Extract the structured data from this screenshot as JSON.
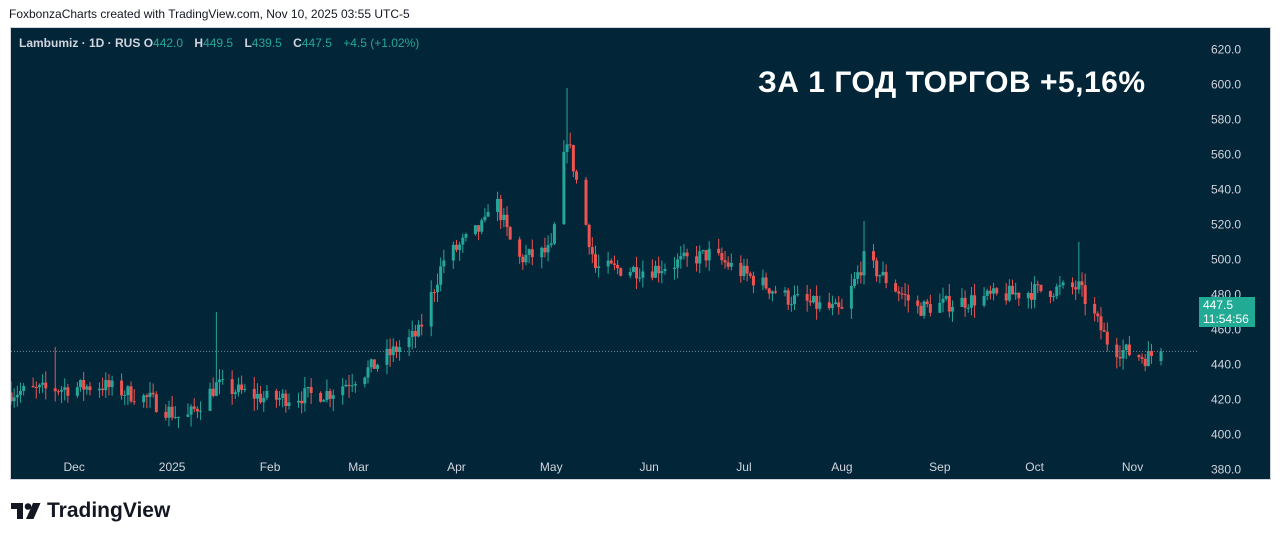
{
  "attribution": "FoxbonzaCharts created with TradingView.com, Nov 10, 2025 03:55 UTC-5",
  "brand": "TradingView",
  "headline": "ЗА 1 ГОД ТОРГОВ +5,16%",
  "legend": {
    "symbol": "Lambumiz · 1D · RUS",
    "o_label": "O",
    "o_value": "442.0",
    "h_label": "H",
    "h_value": "449.5",
    "l_label": "L",
    "l_value": "439.5",
    "c_label": "C",
    "c_value": "447.5",
    "change": "+4.5 (+1.02%)"
  },
  "price_tag": {
    "price": "447.5",
    "countdown": "11:54:56"
  },
  "colors": {
    "background": "#022538",
    "up": "#26a69a",
    "down": "#ef5350",
    "tag": "#22ab94"
  },
  "chart_data": {
    "type": "candlestick",
    "y_ticks": [
      "380.0",
      "400.0",
      "420.0",
      "440.0",
      "460.0",
      "480.0",
      "500.0",
      "520.0",
      "540.0",
      "560.0",
      "580.0",
      "600.0",
      "620.0"
    ],
    "ylim": [
      380,
      620
    ],
    "x_ticks": [
      "Dec",
      "2025",
      "Feb",
      "Mar",
      "Apr",
      "May",
      "Jun",
      "Jul",
      "Aug",
      "Sep",
      "Oct",
      "Nov"
    ],
    "x_range": [
      "2024-11-11",
      "2025-11-10"
    ],
    "tick_dates": [
      "2024-12-01",
      "2025-01-01",
      "2025-02-01",
      "2025-03-01",
      "2025-04-01",
      "2025-05-01",
      "2025-06-01",
      "2025-07-01",
      "2025-08-01",
      "2025-09-01",
      "2025-10-01",
      "2025-11-01"
    ],
    "last_price": 447.5,
    "anchors": [
      {
        "date": "2024-11-11",
        "close": 424
      },
      {
        "date": "2024-11-25",
        "close": 426
      },
      {
        "date": "2024-12-10",
        "close": 428
      },
      {
        "date": "2024-12-25",
        "close": 420
      },
      {
        "date": "2025-01-05",
        "close": 408
      },
      {
        "date": "2025-01-15",
        "close": 428
      },
      {
        "date": "2025-02-01",
        "close": 420
      },
      {
        "date": "2025-02-20",
        "close": 424
      },
      {
        "date": "2025-03-05",
        "close": 438
      },
      {
        "date": "2025-03-20",
        "close": 458
      },
      {
        "date": "2025-03-28",
        "close": 500
      },
      {
        "date": "2025-04-10",
        "close": 520
      },
      {
        "date": "2025-04-12",
        "close": 542
      },
      {
        "date": "2025-04-20",
        "close": 500
      },
      {
        "date": "2025-05-01",
        "close": 505
      },
      {
        "date": "2025-05-06",
        "close": 570
      },
      {
        "date": "2025-05-15",
        "close": 495
      },
      {
        "date": "2025-06-01",
        "close": 494
      },
      {
        "date": "2025-06-20",
        "close": 503
      },
      {
        "date": "2025-07-15",
        "close": 478
      },
      {
        "date": "2025-08-01",
        "close": 470
      },
      {
        "date": "2025-08-08",
        "close": 500
      },
      {
        "date": "2025-08-25",
        "close": 472
      },
      {
        "date": "2025-09-15",
        "close": 478
      },
      {
        "date": "2025-10-01",
        "close": 482
      },
      {
        "date": "2025-10-15",
        "close": 484
      },
      {
        "date": "2025-10-25",
        "close": 450
      },
      {
        "date": "2025-11-05",
        "close": 444
      },
      {
        "date": "2025-11-10",
        "close": 447.5
      }
    ]
  }
}
